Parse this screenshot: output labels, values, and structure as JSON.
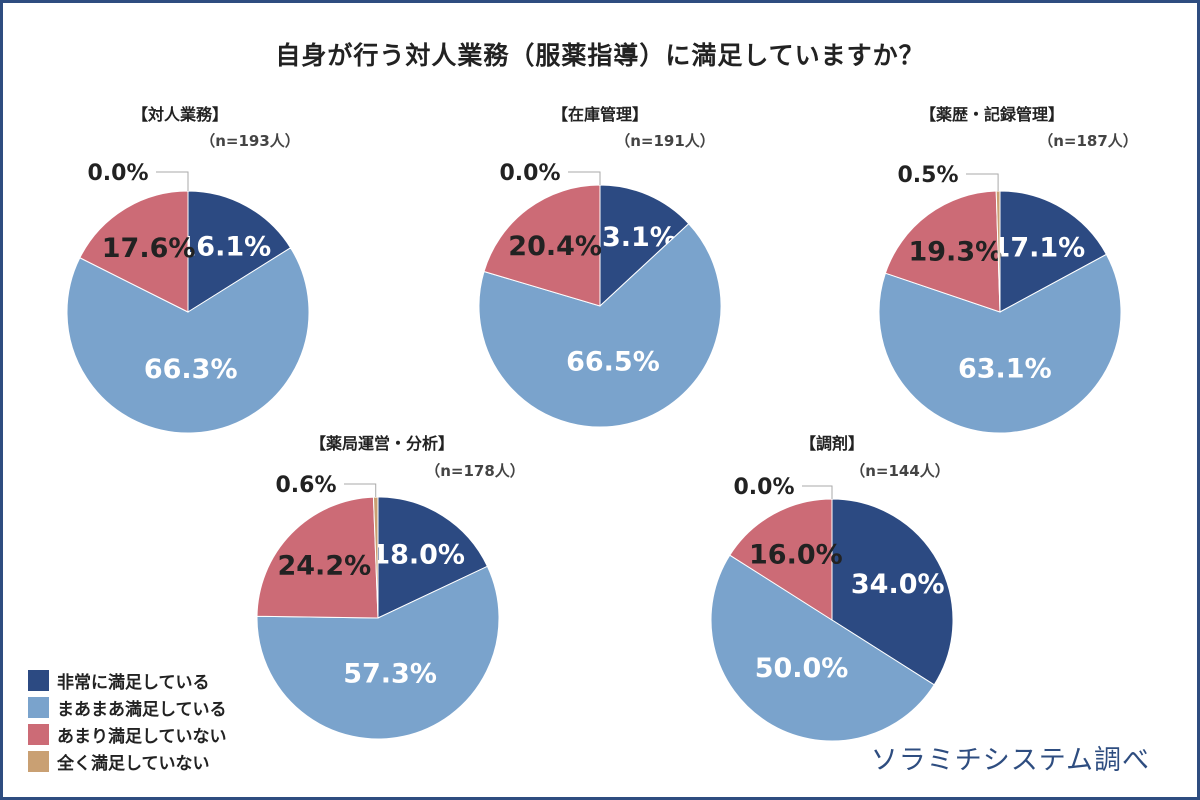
{
  "title": "自身が行う対人業務（服薬指導）に満足していますか？",
  "credit": "ソラミチシステム調べ",
  "colors": {
    "very_satisfied": "#2c4a82",
    "somewhat_satisfied": "#7aa3cc",
    "not_very_satisfied": "#cc6b76",
    "not_at_all_satisfied": "#c9a073",
    "frame": "#2e4d80"
  },
  "legend": [
    {
      "label": "非常に満足している",
      "color": "#2c4a82"
    },
    {
      "label": "まあまあ満足している",
      "color": "#7aa3cc"
    },
    {
      "label": "あまり満足していない",
      "color": "#cc6b76"
    },
    {
      "label": "全く満足していない",
      "color": "#c9a073"
    }
  ],
  "chart_data": [
    {
      "type": "pie",
      "title": "【対人業務】",
      "n_label": "（n=193人）",
      "categories": [
        "非常に満足している",
        "まあまあ満足している",
        "あまり満足していない",
        "全く満足していない"
      ],
      "values": [
        16.1,
        66.3,
        17.6,
        0.0
      ],
      "labels": [
        "16.1%",
        "66.3%",
        "17.6%",
        "0.0%"
      ]
    },
    {
      "type": "pie",
      "title": "【在庫管理】",
      "n_label": "（n=191人）",
      "categories": [
        "非常に満足している",
        "まあまあ満足している",
        "あまり満足していない",
        "全く満足していない"
      ],
      "values": [
        13.1,
        66.5,
        20.4,
        0.0
      ],
      "labels": [
        "13.1%",
        "66.5%",
        "20.4%",
        "0.0%"
      ]
    },
    {
      "type": "pie",
      "title": "【薬歴・記録管理】",
      "n_label": "（n=187人）",
      "categories": [
        "非常に満足している",
        "まあまあ満足している",
        "あまり満足していない",
        "全く満足していない"
      ],
      "values": [
        17.1,
        63.1,
        19.3,
        0.5
      ],
      "labels": [
        "17.1%",
        "63.1%",
        "19.3%",
        "0.5%"
      ]
    },
    {
      "type": "pie",
      "title": "【薬局運営・分析】",
      "n_label": "（n=178人）",
      "categories": [
        "非常に満足している",
        "まあまあ満足している",
        "あまり満足していない",
        "全く満足していない"
      ],
      "values": [
        18.0,
        57.3,
        24.2,
        0.6
      ],
      "labels": [
        "18.0%",
        "57.3%",
        "24.2%",
        "0.6%"
      ]
    },
    {
      "type": "pie",
      "title": "【調剤】",
      "n_label": "（n=144人）",
      "categories": [
        "非常に満足している",
        "まあまあ満足している",
        "あまり満足していない",
        "全く満足していない"
      ],
      "values": [
        34.0,
        50.0,
        16.0,
        0.0
      ],
      "labels": [
        "34.0%",
        "50.0%",
        "16.0%",
        "0.0%"
      ]
    }
  ]
}
